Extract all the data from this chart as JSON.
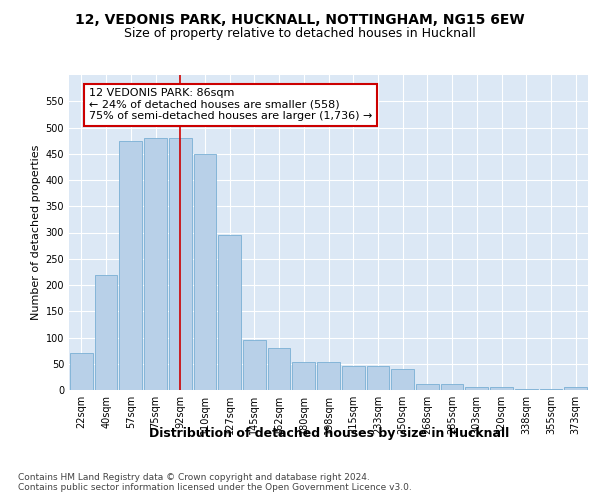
{
  "title1": "12, VEDONIS PARK, HUCKNALL, NOTTINGHAM, NG15 6EW",
  "title2": "Size of property relative to detached houses in Hucknall",
  "xlabel": "Distribution of detached houses by size in Hucknall",
  "ylabel": "Number of detached properties",
  "categories": [
    "22sqm",
    "40sqm",
    "57sqm",
    "75sqm",
    "92sqm",
    "110sqm",
    "127sqm",
    "145sqm",
    "162sqm",
    "180sqm",
    "198sqm",
    "215sqm",
    "233sqm",
    "250sqm",
    "268sqm",
    "285sqm",
    "303sqm",
    "320sqm",
    "338sqm",
    "355sqm",
    "373sqm"
  ],
  "values": [
    70,
    220,
    475,
    480,
    480,
    450,
    295,
    95,
    80,
    53,
    53,
    45,
    45,
    40,
    12,
    12,
    5,
    5,
    1,
    1,
    5
  ],
  "bar_color": "#b8d0e8",
  "bar_edge_color": "#7aafd4",
  "vline_x": 4.0,
  "vline_color": "#cc0000",
  "annotation_text": "12 VEDONIS PARK: 86sqm\n← 24% of detached houses are smaller (558)\n75% of semi-detached houses are larger (1,736) →",
  "annotation_box_color": "#ffffff",
  "annotation_box_edge_color": "#cc0000",
  "ylim": [
    0,
    600
  ],
  "yticks": [
    0,
    50,
    100,
    150,
    200,
    250,
    300,
    350,
    400,
    450,
    500,
    550
  ],
  "bg_color": "#dce8f5",
  "plot_bg_color": "#dce8f5",
  "footer_text": "Contains HM Land Registry data © Crown copyright and database right 2024.\nContains public sector information licensed under the Open Government Licence v3.0.",
  "title1_fontsize": 10,
  "title2_fontsize": 9,
  "xlabel_fontsize": 9,
  "ylabel_fontsize": 8,
  "tick_fontsize": 7,
  "annotation_fontsize": 8,
  "footer_fontsize": 6.5
}
